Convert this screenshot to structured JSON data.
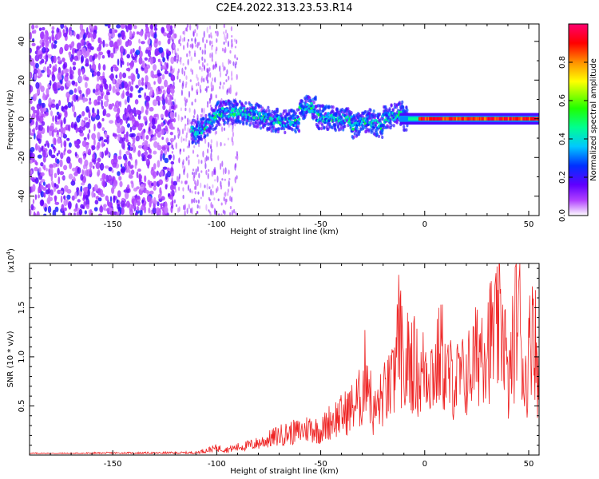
{
  "chart_data": [
    {
      "type": "heatmap",
      "title": "C2E4.2022.313.23.53.R14",
      "xlabel": "Height of straight line (km)",
      "ylabel": "Frequency (Hz)",
      "xlim": [
        -190,
        55
      ],
      "ylim": [
        -50,
        49
      ],
      "xticks": [
        -150,
        -100,
        -50,
        0,
        50
      ],
      "yticks": [
        -40,
        -20,
        0,
        20,
        40
      ],
      "colorbar": {
        "label": "Normalized spectral amplitude",
        "range": [
          0,
          1
        ],
        "ticks": [
          0.0,
          0.2,
          0.4,
          0.6,
          0.8
        ],
        "tick_labels": [
          "0.0",
          "0.2",
          "0.4",
          "0.6",
          "0.8"
        ]
      },
      "description_regions": [
        {
          "x_range": [
            -190,
            -120
          ],
          "pattern": "broadband noise",
          "amplitude_range": [
            0.05,
            0.25
          ]
        },
        {
          "x_range": [
            -120,
            -90
          ],
          "pattern": "sparse noise fading",
          "amplitude_range": [
            0.03,
            0.15
          ]
        },
        {
          "x_range": [
            -110,
            -10
          ],
          "pattern": "wandering line near 0 Hz",
          "freq_range": [
            -8,
            10
          ],
          "amplitude_range": [
            0.25,
            0.55
          ]
        },
        {
          "x_range": [
            -10,
            55
          ],
          "pattern": "strong line at 0 Hz",
          "freq_range": [
            -1,
            1
          ],
          "amplitude_range": [
            0.85,
            1.0
          ]
        }
      ]
    },
    {
      "type": "line",
      "xlabel": "Height of straight line (km)",
      "ylabel": "SNR (10 * v/v)",
      "y_scale_label": "(x10",
      "y_scale_exp": "4",
      "xlim": [
        -190,
        55
      ],
      "ylim": [
        0,
        19500
      ],
      "xticks": [
        -150,
        -100,
        -50,
        0,
        50
      ],
      "yticks": [
        5000,
        10000,
        15000
      ],
      "ytick_labels": [
        "0.5",
        "1.0",
        "1.5"
      ],
      "series": [
        {
          "name": "SNR",
          "color": "#ee2222",
          "x": [
            -190,
            -170,
            -150,
            -130,
            -110,
            -100,
            -95,
            -90,
            -85,
            -80,
            -75,
            -70,
            -65,
            -60,
            -55,
            -50,
            -45,
            -40,
            -35,
            -30,
            -28,
            -25,
            -20,
            -15,
            -12,
            -10,
            -8,
            -5,
            -2,
            0,
            5,
            8,
            10,
            15,
            20,
            25,
            28,
            30,
            35,
            38,
            40,
            45,
            48,
            50,
            52,
            55
          ],
          "y": [
            200,
            200,
            250,
            250,
            300,
            900,
            700,
            1000,
            1200,
            1500,
            2000,
            2500,
            2800,
            3000,
            3500,
            3000,
            4500,
            5000,
            6000,
            7500,
            12000,
            5000,
            7500,
            9000,
            16200,
            8500,
            12500,
            11500,
            9500,
            11500,
            10500,
            13500,
            10000,
            9500,
            10000,
            12500,
            15000,
            14500,
            15500,
            17000,
            8000,
            19500,
            9000,
            12000,
            19500,
            7000
          ]
        }
      ]
    }
  ]
}
